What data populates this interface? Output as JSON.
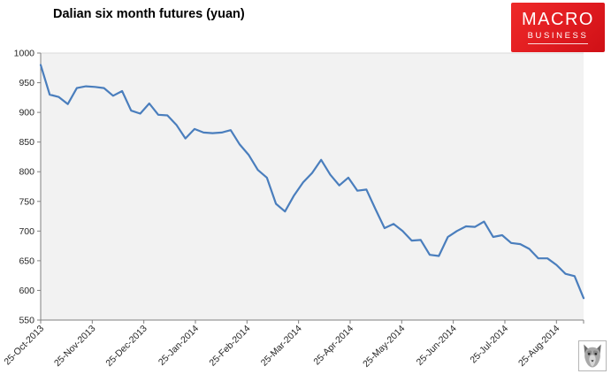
{
  "header": {
    "title": "Dalian six month futures (yuan)"
  },
  "logo": {
    "line1": "MACRO",
    "line2": "BUSINESS",
    "background": "#e01b20",
    "text_color": "#ffffff"
  },
  "watermark": {
    "description": "small grayscale wolf face image"
  },
  "colors": {
    "line": "#4a7ebd",
    "plot_background": "#f2f2f2",
    "plot_top_border": "#d9d9d9",
    "axis": "#808080",
    "tick_label": "#262626"
  },
  "chart_data": {
    "type": "line",
    "title": "Dalian six month futures (yuan)",
    "xlabel": "",
    "ylabel": "",
    "ylim": [
      550,
      1000
    ],
    "y_ticks": [
      550,
      600,
      650,
      700,
      750,
      800,
      850,
      900,
      950,
      1000
    ],
    "x_tick_labels": [
      "25-Oct-2013",
      "25-Nov-2013",
      "25-Dec-2013",
      "25-Jan-2014",
      "25-Feb-2014",
      "25-Mar-2014",
      "25-Apr-2014",
      "25-May-2014",
      "25-Jun-2014",
      "25-Jul-2014",
      "25-Aug-2014"
    ],
    "x_start": "25-Oct-2013",
    "x_end": "12-Sep-2014",
    "sampling": "evenly spaced, approx. twice weekly (values traced from chart)",
    "grid": false,
    "legend": "none",
    "series": [
      {
        "name": "Dalian six month futures (yuan)",
        "color": "#4a7ebd",
        "values": [
          980,
          930,
          926,
          914,
          941,
          944,
          943,
          941,
          928,
          936,
          903,
          898,
          915,
          896,
          895,
          879,
          856,
          872,
          866,
          865,
          866,
          870,
          846,
          828,
          803,
          790,
          746,
          733,
          760,
          782,
          798,
          820,
          795,
          777,
          790,
          768,
          770,
          737,
          705,
          712,
          700,
          684,
          685,
          660,
          658,
          690,
          700,
          708,
          707,
          716,
          690,
          693,
          680,
          678,
          670,
          654,
          654,
          643,
          628,
          624,
          587
        ]
      }
    ]
  }
}
